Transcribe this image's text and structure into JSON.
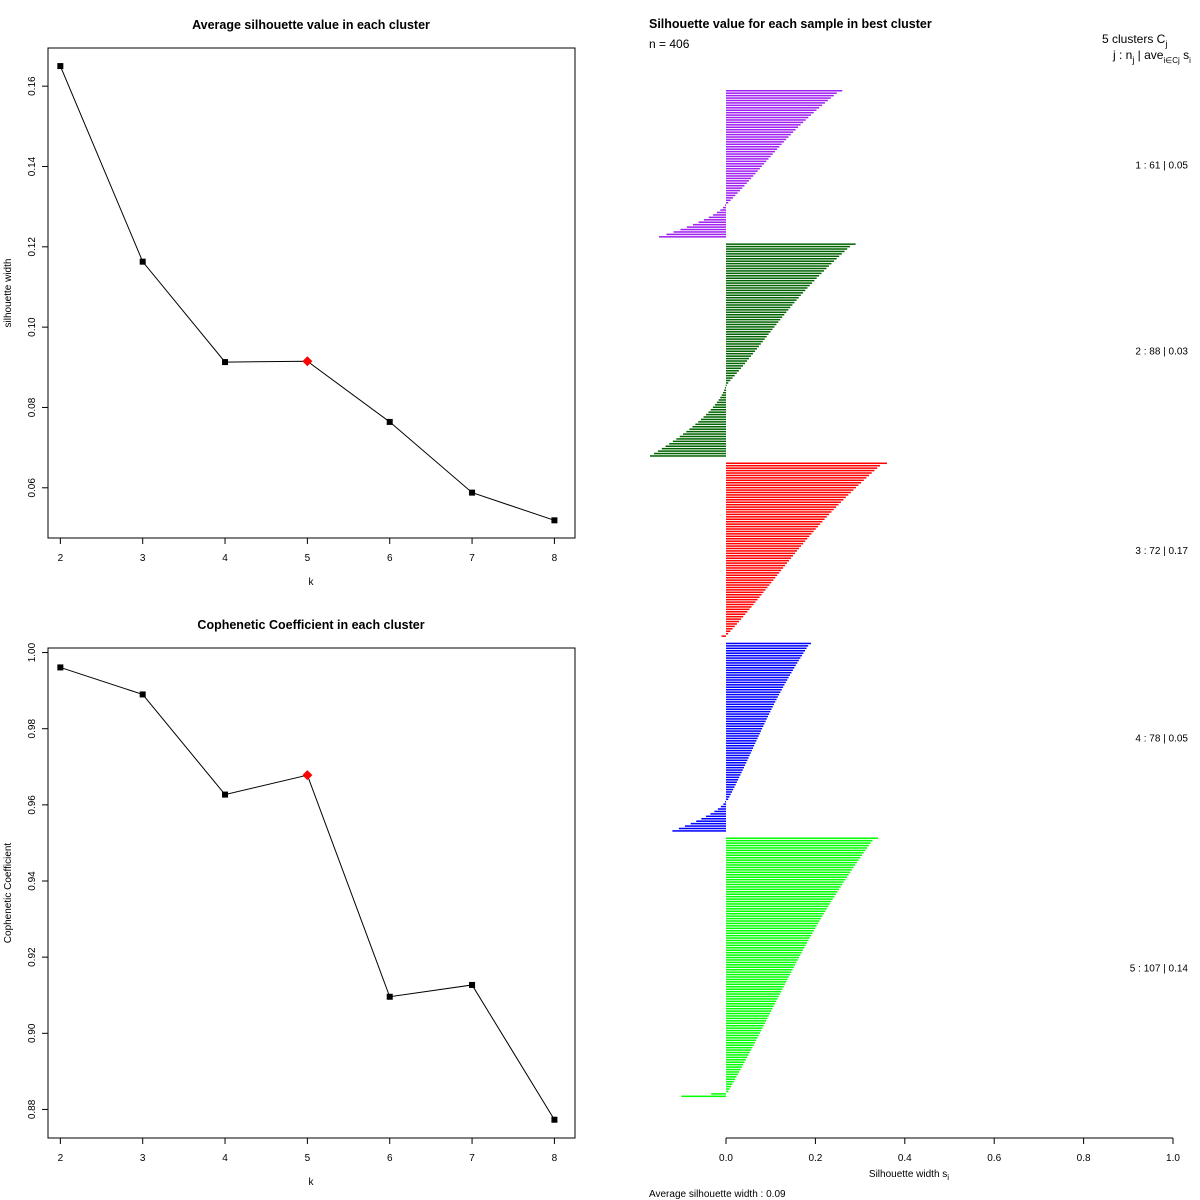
{
  "chart_data": [
    {
      "type": "line",
      "title": "Average silhouette value in each cluster",
      "xlabel": "k",
      "ylabel": "silhouette width",
      "x": [
        2,
        3,
        4,
        5,
        6,
        7,
        8
      ],
      "values": [
        0.165,
        0.1163,
        0.0913,
        0.0915,
        0.0764,
        0.0588,
        0.0519
      ],
      "highlight_index": 3,
      "highlight_color": "#ff0000",
      "point_color": "#000000",
      "xlim": [
        1.85,
        8.25
      ],
      "ylim": [
        0.0475,
        0.1695
      ],
      "xticks": [
        "2",
        "3",
        "4",
        "5",
        "6",
        "7",
        "8"
      ],
      "yticks": [
        "0.06",
        "0.08",
        "0.10",
        "0.12",
        "0.14",
        "0.16"
      ],
      "ytick_values": [
        0.06,
        0.08,
        0.1,
        0.12,
        0.14,
        0.16
      ]
    },
    {
      "type": "line",
      "title": "Cophenetic Coefficient in each cluster",
      "xlabel": "k",
      "ylabel": "Cophenetic Coefficient",
      "x": [
        2,
        3,
        4,
        5,
        6,
        7,
        8
      ],
      "values": [
        0.9961,
        0.989,
        0.9627,
        0.9678,
        0.9096,
        0.9127,
        0.8773
      ],
      "highlight_index": 3,
      "highlight_color": "#ff0000",
      "point_color": "#000000",
      "xlim": [
        1.85,
        8.25
      ],
      "ylim": [
        0.8725,
        1.0012
      ],
      "xticks": [
        "2",
        "3",
        "4",
        "5",
        "6",
        "7",
        "8"
      ],
      "yticks": [
        "0.88",
        "0.90",
        "0.92",
        "0.94",
        "0.96",
        "0.98",
        "1.00"
      ],
      "ytick_values": [
        0.88,
        0.9,
        0.92,
        0.94,
        0.96,
        0.98,
        1.0
      ]
    },
    {
      "type": "bar",
      "orientation": "horizontal",
      "title": "Silhouette value for each sample in best cluster",
      "n_label": "n = 406",
      "header_clusters": "5 clusters  C",
      "header_clusters_sub": "j",
      "header_legend": "j :  n",
      "header_legend_sub": "j",
      "header_legend_rest": " | ave",
      "header_legend_sub2": "i∈Cj",
      "header_legend_s": " s",
      "header_legend_sub3": "i",
      "xlabel": "Silhouette width s",
      "xlabel_sub": "i",
      "xlim": [
        -0.17,
        1.0
      ],
      "xticks": [
        "0.0",
        "0.2",
        "0.4",
        "0.6",
        "0.8",
        "1.0"
      ],
      "xtick_values": [
        0.0,
        0.2,
        0.4,
        0.6,
        0.8,
        1.0
      ],
      "footer": "Average silhouette width :  0.09",
      "clusters": [
        {
          "id": 1,
          "n": 61,
          "avg": 0.05,
          "label": "1 :  61  |  0.05",
          "color": "#a020f0",
          "max": 0.26,
          "min": -0.15,
          "neg_count": 14
        },
        {
          "id": 2,
          "n": 88,
          "avg": 0.03,
          "label": "2 :  88  |  0.03",
          "color": "#006400",
          "max": 0.29,
          "min": -0.17,
          "neg_count": 30
        },
        {
          "id": 3,
          "n": 72,
          "avg": 0.17,
          "label": "3 :  72  |  0.17",
          "color": "#ff0000",
          "max": 0.36,
          "min": -0.01,
          "neg_count": 1
        },
        {
          "id": 4,
          "n": 78,
          "avg": 0.05,
          "label": "4 :  78  |  0.05",
          "color": "#0000ff",
          "max": 0.19,
          "min": -0.12,
          "neg_count": 13
        },
        {
          "id": 5,
          "n": 107,
          "avg": 0.14,
          "label": "5 :  107  |  0.14",
          "color": "#00ff00",
          "max": 0.34,
          "min": -0.1,
          "neg_count": 2
        }
      ]
    }
  ]
}
